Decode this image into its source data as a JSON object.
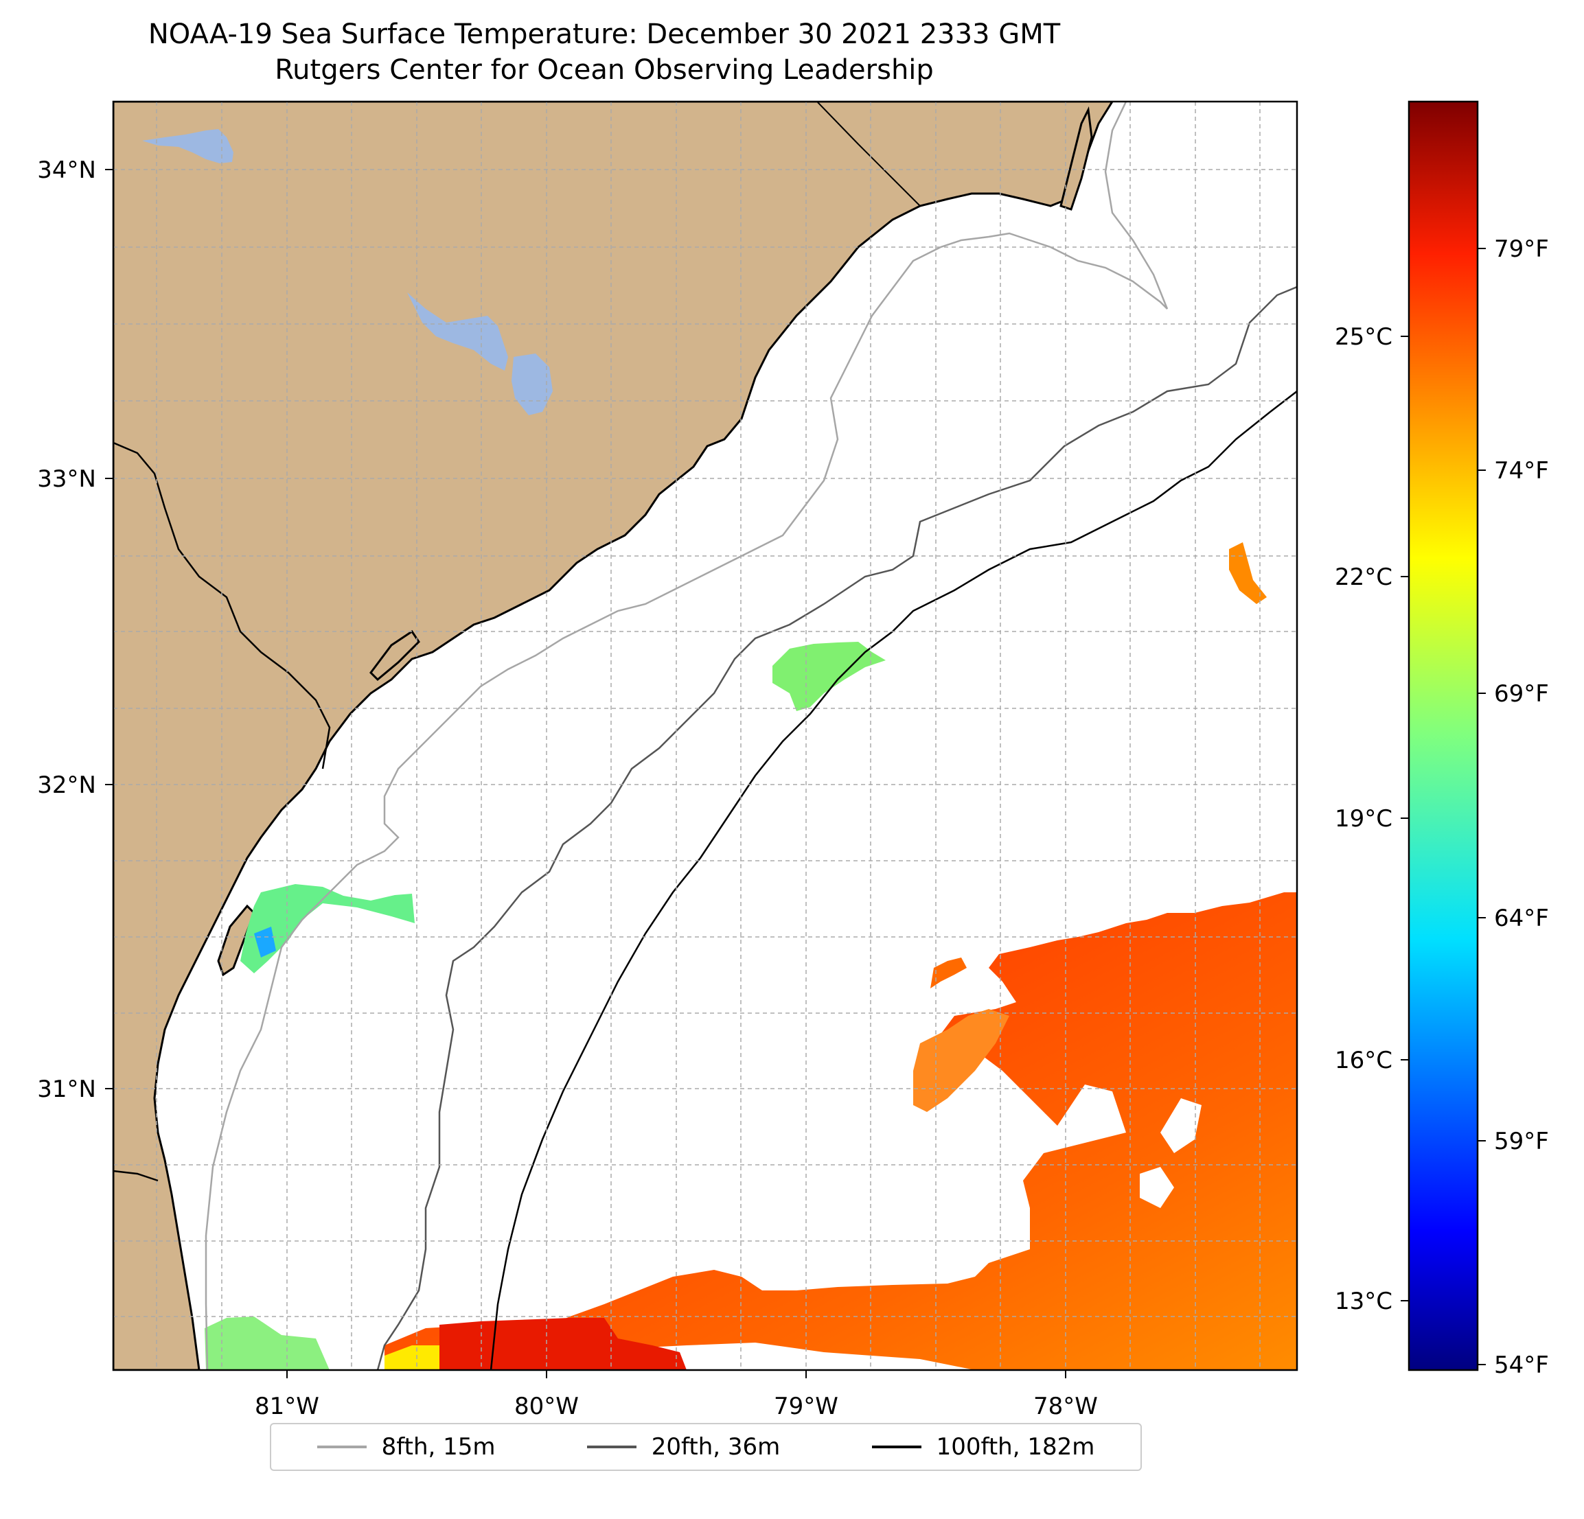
{
  "title": "NOAA-19 Sea Surface Temperature: December 30 2021 2333 GMT",
  "subtitle": "Rutgers Center for Ocean Observing Leadership",
  "map": {
    "lon_range": [
      -81.68,
      -77.12
    ],
    "lat_range": [
      30.07,
      34.22
    ],
    "lon_ticks": [
      "81°W",
      "80°W",
      "79°W",
      "78°W"
    ],
    "lat_ticks": [
      "34°N",
      "33°N",
      "32°N",
      "31°N"
    ],
    "grid": true,
    "land_color": "#d2b48c",
    "lake_color": "#9db8e2",
    "ocean_color": "#ffffff"
  },
  "colorbar": {
    "colormap": "jet",
    "celsius_labels": [
      "25°C",
      "22°C",
      "19°C",
      "16°C",
      "13°C"
    ],
    "fahrenheit_labels": [
      "79°F",
      "74°F",
      "69°F",
      "64°F",
      "59°F",
      "54°F"
    ]
  },
  "legend": [
    {
      "label": "8fth, 15m",
      "color": "#a6a6a6"
    },
    {
      "label": "20fth, 36m",
      "color": "#555555"
    },
    {
      "label": "100fth, 182m",
      "color": "#000000"
    }
  ]
}
